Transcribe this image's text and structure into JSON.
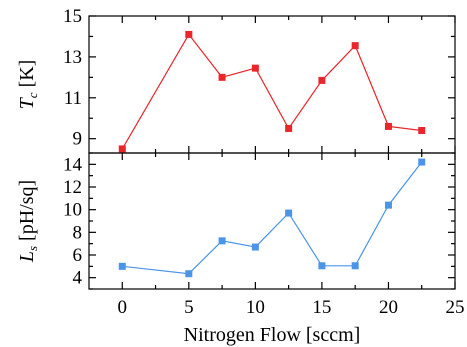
{
  "chart_data": [
    {
      "type": "line",
      "panel": "top",
      "xlabel": "Nitrogen Flow [sccm]",
      "ylabel": {
        "symbol": "T",
        "subscript": "c",
        "unit": " [K]"
      },
      "xlim": [
        -2.5,
        25
      ],
      "ylim": [
        8.3,
        15
      ],
      "xticks": [
        0,
        5,
        10,
        15,
        20,
        25
      ],
      "xticks_minor": [
        2.5,
        7.5,
        12.5,
        17.5,
        22.5
      ],
      "yticks": [
        9,
        11,
        13,
        15
      ],
      "yticks_minor": [
        10,
        12,
        14
      ],
      "grid": false,
      "series": [
        {
          "color": "#e8262b",
          "marker": "square",
          "x": [
            0,
            5,
            7.5,
            10,
            12.5,
            15,
            17.5,
            20,
            22.5
          ],
          "y": [
            8.5,
            14.1,
            12.0,
            12.45,
            9.5,
            11.85,
            13.55,
            9.6,
            9.4
          ]
        }
      ]
    },
    {
      "type": "line",
      "panel": "bottom",
      "xlabel": "Nitrogen Flow [sccm]",
      "ylabel": {
        "symbol": "L",
        "subscript": "s",
        "unit": " [pH/sq]"
      },
      "xlim": [
        -2.5,
        25
      ],
      "ylim": [
        3,
        15
      ],
      "xticks": [
        0,
        5,
        10,
        15,
        20,
        25
      ],
      "xticks_minor": [
        2.5,
        7.5,
        12.5,
        17.5,
        22.5
      ],
      "yticks": [
        4,
        6,
        8,
        10,
        12,
        14
      ],
      "yticks_minor": [
        3,
        5,
        7,
        9,
        11,
        13,
        15
      ],
      "grid": false,
      "series": [
        {
          "color": "#4b95e8",
          "marker": "square",
          "x": [
            0,
            5,
            7.5,
            10,
            12.5,
            15,
            17.5,
            20,
            22.5
          ],
          "y": [
            5.0,
            4.35,
            7.25,
            6.7,
            9.7,
            5.05,
            5.05,
            10.4,
            14.2
          ]
        }
      ]
    }
  ]
}
